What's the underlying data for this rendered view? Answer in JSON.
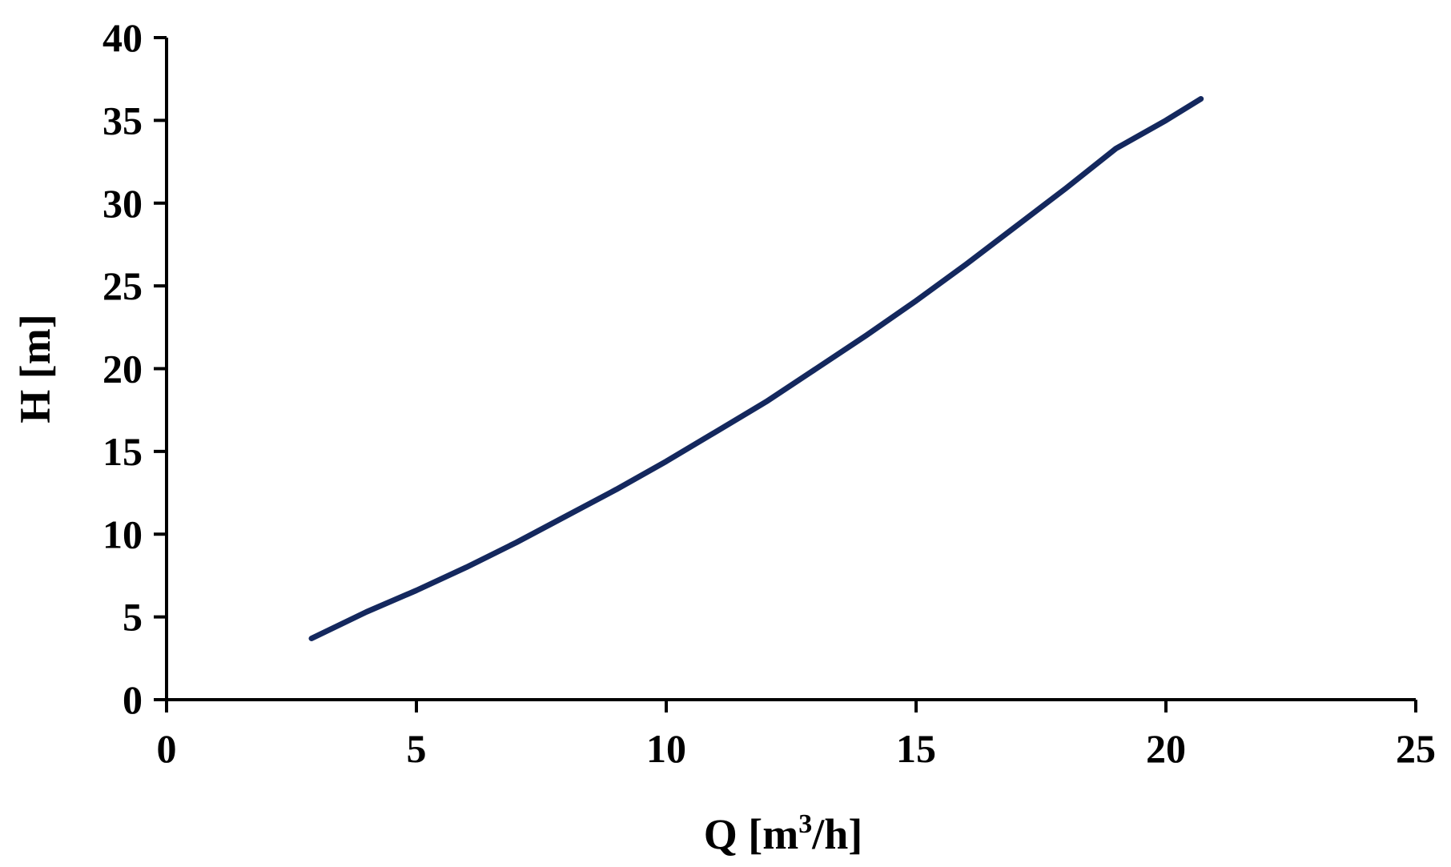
{
  "chart_data": {
    "type": "line",
    "title": "",
    "xlabel": "Q [m",
    "xlabel_sup": "3",
    "xlabel_suffix": "/h]",
    "ylabel": "H [m]",
    "xlim": [
      0,
      25
    ],
    "ylim": [
      0,
      40
    ],
    "x_ticks": [
      0,
      5,
      10,
      15,
      20,
      25
    ],
    "y_ticks": [
      0,
      5,
      10,
      15,
      20,
      25,
      30,
      35,
      40
    ],
    "grid": false,
    "legend": "none",
    "series": [
      {
        "color": "#14285e",
        "x": [
          2.9,
          4,
          5,
          6,
          7,
          8,
          9,
          10,
          11,
          12,
          13,
          14,
          15,
          16,
          17,
          18,
          19,
          20,
          20.7
        ],
        "y": [
          3.7,
          5.3,
          6.6,
          8.0,
          9.5,
          11.1,
          12.7,
          14.4,
          16.2,
          18.0,
          20.0,
          22.0,
          24.1,
          26.3,
          28.6,
          30.9,
          33.3,
          35.0,
          36.3
        ]
      }
    ]
  }
}
